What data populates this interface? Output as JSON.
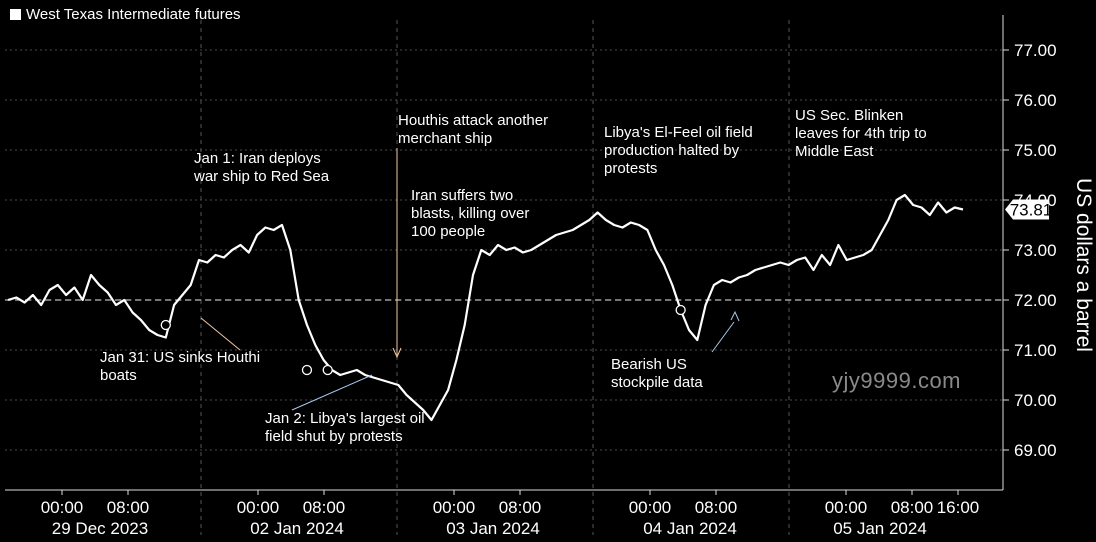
{
  "legend": {
    "label": "West Texas Intermediate futures"
  },
  "watermark": "yjy9999.com",
  "chart_data": {
    "type": "line",
    "title": "",
    "series": [
      {
        "name": "West Texas Intermediate futures",
        "last_value_label": "73.81"
      }
    ],
    "ylabel": "US dollars a barrel",
    "ylim": [
      68.2,
      77.6
    ],
    "yticks": [
      "69.00",
      "70.00",
      "71.00",
      "72.00",
      "73.00",
      "74.00",
      "75.00",
      "76.00",
      "77.00"
    ],
    "reference_line": 72.0,
    "xticks": [
      "00:00",
      "08:00",
      "00:00",
      "08:00",
      "00:00",
      "08:00",
      "00:00",
      "08:00",
      "00:00",
      "08:00",
      "16:00"
    ],
    "day_labels": [
      "29 Dec 2023",
      "02 Jan 2024",
      "03 Jan 2024",
      "04 Jan 2024",
      "05 Jan 2024"
    ],
    "x": [
      0,
      1,
      2,
      3,
      4,
      5,
      6,
      7,
      8,
      9,
      10,
      11,
      12,
      13,
      14,
      15,
      16,
      17,
      18,
      19,
      20,
      21,
      22,
      23,
      24,
      25,
      26,
      27,
      28,
      29,
      30,
      31,
      32,
      33,
      34,
      35,
      36,
      37,
      38,
      39,
      40,
      41,
      42,
      43,
      44,
      45,
      46,
      47,
      48,
      49,
      50,
      51,
      52,
      53,
      54,
      55,
      56,
      57,
      58,
      59,
      60,
      61,
      62,
      63,
      64,
      65,
      66,
      67,
      68,
      69,
      70,
      71,
      72,
      73,
      74,
      75,
      76,
      77,
      78,
      79,
      80,
      81,
      82,
      83,
      84,
      85,
      86,
      87,
      88,
      89,
      90,
      91,
      92,
      93,
      94,
      95,
      96,
      97,
      98,
      99,
      100,
      101,
      102,
      103,
      104,
      105,
      106,
      107,
      108,
      109,
      110,
      111,
      112,
      113,
      114,
      115
    ],
    "values": [
      72.0,
      72.05,
      71.95,
      72.1,
      71.9,
      72.2,
      72.3,
      72.1,
      72.25,
      72.0,
      72.5,
      72.3,
      72.15,
      71.9,
      72.0,
      71.75,
      71.6,
      71.4,
      71.3,
      71.25,
      71.9,
      72.1,
      72.3,
      72.8,
      72.75,
      72.9,
      72.85,
      73.0,
      73.1,
      72.95,
      73.3,
      73.45,
      73.4,
      73.5,
      73.0,
      72.0,
      71.5,
      71.1,
      70.8,
      70.6,
      70.5,
      70.55,
      70.6,
      70.5,
      70.45,
      70.4,
      70.35,
      70.3,
      70.1,
      69.95,
      69.8,
      69.6,
      69.9,
      70.2,
      70.8,
      71.5,
      72.5,
      73.0,
      72.9,
      73.1,
      73.0,
      73.05,
      72.95,
      73.0,
      73.1,
      73.2,
      73.3,
      73.35,
      73.4,
      73.5,
      73.6,
      73.75,
      73.6,
      73.5,
      73.45,
      73.55,
      73.5,
      73.4,
      73.0,
      72.7,
      72.3,
      71.8,
      71.4,
      71.2,
      71.9,
      72.3,
      72.4,
      72.35,
      72.45,
      72.5,
      72.6,
      72.65,
      72.7,
      72.75,
      72.7,
      72.8,
      72.85,
      72.6,
      72.9,
      72.7,
      73.1,
      72.8,
      72.85,
      72.9,
      73.0,
      73.3,
      73.6,
      74.0,
      74.1,
      73.9,
      73.85,
      73.7,
      73.95,
      73.75,
      73.85,
      73.81
    ],
    "markers": [
      {
        "x": 19,
        "y": 71.5
      },
      {
        "x": 36,
        "y": 70.6
      },
      {
        "x": 38.5,
        "y": 70.6
      },
      {
        "x": 81,
        "y": 71.8
      }
    ]
  },
  "annotations": [
    {
      "text": "Jan 1: Iran deploys\nwar ship to Red Sea",
      "color": "#f2c6a2"
    },
    {
      "text": "Houthis attack another\nmerchant ship",
      "color": "#f2c6a2"
    },
    {
      "text": "Iran suffers two\nblasts, killing over\n100 people",
      "color": "#f2e0a8"
    },
    {
      "text": "Libya's El-Feel oil field\nproduction halted by\nprotests",
      "color": "#a9c9ee"
    },
    {
      "text": "US Sec. Blinken\nleaves for 4th trip to\nMiddle East",
      "color": "#f2e0a8"
    },
    {
      "text": "Jan 31: US sinks Houthi\nboats",
      "color": "#f2c6a2"
    },
    {
      "text": "Jan 2: Libya's largest oil\nfield shut by protests",
      "color": "#a9c9ee"
    },
    {
      "text": "Bearish US\nstockpile data",
      "color": "#a9c9ee"
    }
  ]
}
